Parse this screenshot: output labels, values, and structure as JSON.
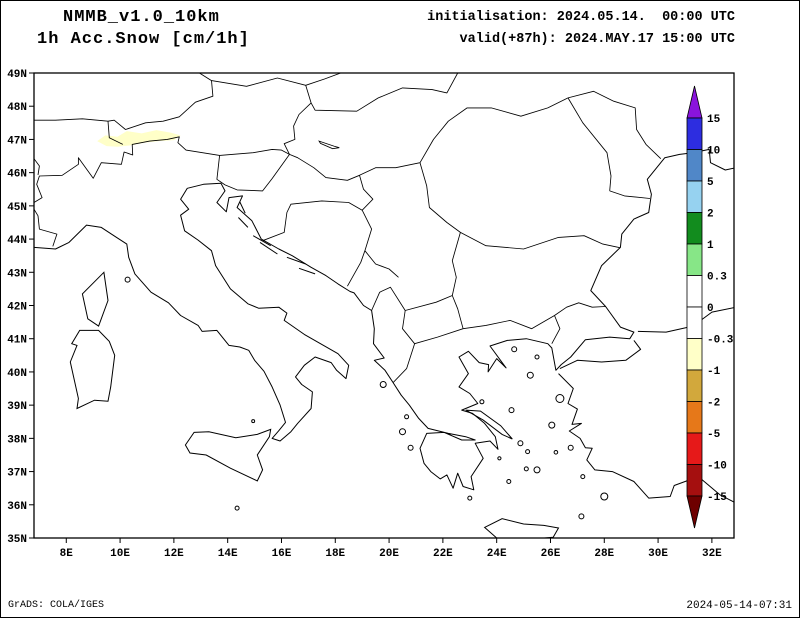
{
  "header": {
    "model": "NMMB_v1.0_10km",
    "variable": "1h Acc.Snow [cm/1h]",
    "init_line": "initialisation: 2024.05.14.  00:00 UTC",
    "valid_line": "valid(+87h): 2024.MAY.17 15:00 UTC"
  },
  "axes": {
    "lat_labels": [
      "49N",
      "48N",
      "47N",
      "46N",
      "45N",
      "44N",
      "43N",
      "42N",
      "41N",
      "40N",
      "39N",
      "38N",
      "37N",
      "36N",
      "35N"
    ],
    "lon_labels": [
      "8E",
      "10E",
      "12E",
      "14E",
      "16E",
      "18E",
      "20E",
      "22E",
      "24E",
      "26E",
      "28E",
      "30E",
      "32E"
    ]
  },
  "colorbar": {
    "units": "cm/1h",
    "labels": [
      "15",
      "10",
      "5",
      "2",
      "1",
      "0.3",
      "0",
      "-0.3",
      "-1",
      "-2",
      "-5",
      "-10",
      "-15"
    ],
    "arrow_top_color": "#8a14dc",
    "arrow_bottom_color": "#6e0000",
    "segment_colors": [
      "#2d2de0",
      "#5087c8",
      "#96d2f0",
      "#128c1e",
      "#87e687",
      "#ffffff",
      "#ffffff",
      "#ffffc8",
      "#d2a83c",
      "#e67819",
      "#e61919",
      "#a50f0f"
    ]
  },
  "field": {
    "name": "1h accumulated snow",
    "shaded_regions": [
      {
        "color": "#ffffc8",
        "bin": "-0.3 to -1",
        "location": "Alpine region approx 9E-12E, 46.8N-47.3N"
      }
    ]
  },
  "footer": {
    "left": "GrADS: COLA/IGES",
    "right": "2024-05-14-07:31"
  }
}
